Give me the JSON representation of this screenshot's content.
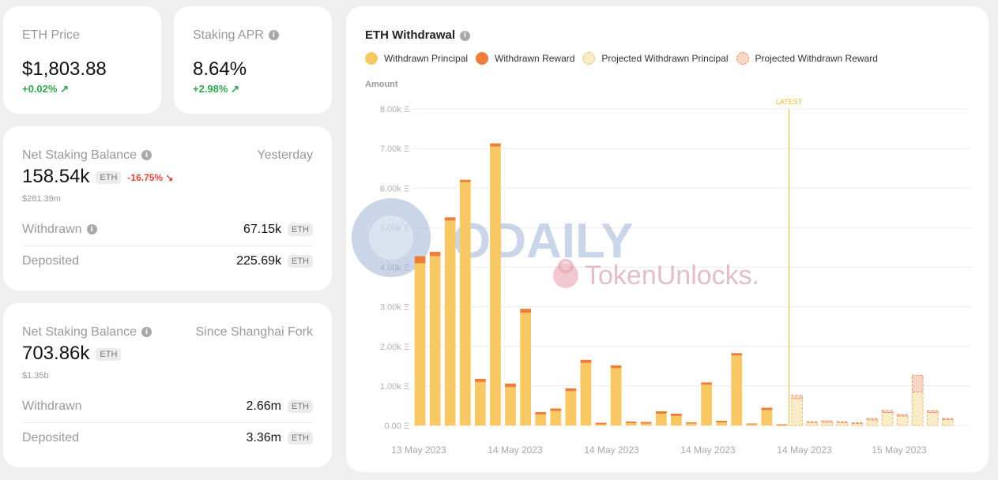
{
  "eth_price": {
    "label": "ETH Price",
    "value": "$1,803.88",
    "change": "+0.02% ↗"
  },
  "staking_apr": {
    "label": "Staking APR",
    "value": "8.64%",
    "change": "+2.98% ↗"
  },
  "yesterday_card": {
    "title": "Net Staking Balance",
    "period": "Yesterday",
    "value": "158.54k",
    "unit": "ETH",
    "change": "-16.75% ↘",
    "usd": "$281.39m",
    "withdrawn_label": "Withdrawn",
    "withdrawn_value": "67.15k",
    "deposited_label": "Deposited",
    "deposited_value": "225.69k"
  },
  "shanghai_card": {
    "title": "Net Staking Balance",
    "period": "Since Shanghai Fork",
    "value": "703.86k",
    "unit": "ETH",
    "usd": "$1.35b",
    "withdrawn_label": "Withdrawn",
    "withdrawn_value": "2.66m",
    "deposited_label": "Deposited",
    "deposited_value": "3.36m"
  },
  "watermark": {
    "odaily": "ODAILY",
    "tokenunlocks": "TokenUnlocks."
  },
  "colors": {
    "principal": "#f7c863",
    "reward": "#ee7d3c",
    "projected_principal": "#fbecc9",
    "projected_reward": "#f9d5c3",
    "latest_line": "#e8b931",
    "gain": "#2fa64f",
    "loss": "#e0453b"
  },
  "chart_data": {
    "type": "bar",
    "title": "ETH Withdrawal",
    "ylabel": "Amount",
    "ylim": [
      0,
      8000
    ],
    "yticks": [
      "0.00 Ξ",
      "1.00k Ξ",
      "2.00k Ξ",
      "3.00k Ξ",
      "4.00k Ξ",
      "5.00k Ξ",
      "6.00k Ξ",
      "7.00k Ξ",
      "8.00k Ξ"
    ],
    "xticks": [
      "13 May 2023",
      "14 May 2023",
      "14 May 2023",
      "14 May 2023",
      "14 May 2023",
      "15 May 2023"
    ],
    "latest_label": "LATEST",
    "grid": true,
    "legend_position": "top",
    "series": [
      {
        "name": "Withdrawn Principal",
        "projected": false,
        "values": [
          4100,
          4280,
          5180,
          6150,
          1100,
          7050,
          970,
          2850,
          280,
          370,
          870,
          1580,
          30,
          1450,
          60,
          50,
          300,
          240,
          50,
          1030,
          80,
          1770,
          30,
          390,
          10,
          0,
          0,
          0,
          0,
          0,
          0,
          0,
          0,
          0,
          0,
          0,
          0
        ]
      },
      {
        "name": "Withdrawn Reward",
        "projected": false,
        "values": [
          180,
          110,
          80,
          60,
          80,
          80,
          90,
          100,
          60,
          60,
          70,
          80,
          40,
          70,
          40,
          40,
          60,
          60,
          30,
          60,
          40,
          60,
          20,
          60,
          20,
          0,
          0,
          0,
          0,
          0,
          0,
          0,
          0,
          0,
          0,
          0,
          0
        ]
      },
      {
        "name": "Projected Withdrawn Principal",
        "projected": true,
        "values": [
          0,
          0,
          0,
          0,
          0,
          0,
          0,
          0,
          0,
          0,
          0,
          0,
          0,
          0,
          0,
          0,
          0,
          0,
          0,
          0,
          0,
          0,
          0,
          0,
          0,
          680,
          70,
          80,
          70,
          50,
          140,
          330,
          240,
          850,
          330,
          150,
          0
        ]
      },
      {
        "name": "Projected Withdrawn Reward",
        "projected": true,
        "values": [
          0,
          0,
          0,
          0,
          0,
          0,
          0,
          0,
          0,
          0,
          0,
          0,
          0,
          0,
          0,
          0,
          0,
          0,
          0,
          0,
          0,
          0,
          0,
          0,
          0,
          80,
          30,
          40,
          30,
          20,
          40,
          50,
          40,
          420,
          50,
          30,
          0
        ]
      }
    ],
    "latest_after_index": 24
  }
}
